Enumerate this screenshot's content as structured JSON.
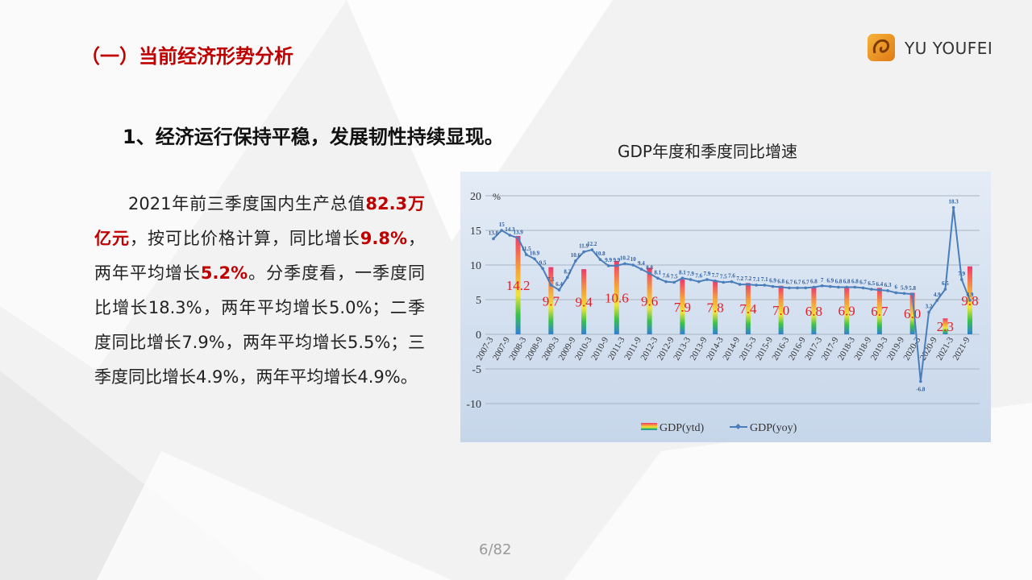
{
  "header": {
    "title": "（一）当前经济形势分析",
    "brand": "YU YOUFEI"
  },
  "heading": "1、经济运行保持平稳，发展韧性持续显现。",
  "body": [
    "2021年前三季度国内生产总值",
    "82.3万亿元",
    "，按可比价格计算，同比增长",
    "9.8%",
    "，两年平均增长",
    "5.2%",
    "。分季度看，一季度同比增长18.3%，两年平均增长5.0%；二季度同比增长7.9%，两年平均增长5.5%；三季度同比增长4.9%，两年平均增长4.9%。"
  ],
  "chart_data": {
    "type": "bar-line",
    "title": "GDP年度和季度同比增速",
    "y_unit": "%",
    "categories": [
      "2007-3",
      null,
      "2007-9",
      null,
      "2008-3",
      null,
      "2008-9",
      null,
      "2009-3",
      null,
      "2009-9",
      null,
      "2010-3",
      null,
      "2010-9",
      null,
      "2011-3",
      null,
      "2011-9",
      null,
      "2012-3",
      null,
      "2012-9",
      null,
      "2013-3",
      null,
      "2013-9",
      null,
      "2014-3",
      null,
      "2014-9",
      null,
      "2015-3",
      null,
      "2015-9",
      null,
      "2016-3",
      null,
      "2016-9",
      null,
      "2017-3",
      null,
      "2017-9",
      null,
      "2018-3",
      null,
      "2018-9",
      null,
      "2019-3",
      null,
      "2019-9",
      null,
      "2020-3",
      null,
      "2020-9",
      null,
      "2021-3",
      null,
      "2021-9"
    ],
    "series": [
      {
        "name": "GDP(ytd)",
        "kind": "bar",
        "values": [
          null,
          null,
          null,
          14.2,
          null,
          null,
          null,
          9.7,
          null,
          null,
          null,
          9.4,
          null,
          null,
          null,
          10.6,
          null,
          null,
          null,
          9.6,
          null,
          null,
          null,
          7.9,
          null,
          null,
          null,
          7.8,
          null,
          null,
          null,
          7.4,
          null,
          null,
          null,
          7.0,
          null,
          null,
          null,
          6.8,
          null,
          null,
          null,
          6.9,
          null,
          null,
          null,
          6.7,
          null,
          null,
          null,
          6.0,
          null,
          null,
          null,
          2.3,
          null,
          null,
          9.8
        ],
        "value_labels": [
          null,
          null,
          null,
          "14.2",
          null,
          null,
          null,
          "9.7",
          null,
          null,
          null,
          "9.4",
          null,
          null,
          null,
          "10.6",
          null,
          null,
          null,
          "9.6",
          null,
          null,
          null,
          "7.9",
          null,
          null,
          null,
          "7.8",
          null,
          null,
          null,
          "7.4",
          null,
          null,
          null,
          "7.0",
          null,
          null,
          null,
          "6.8",
          null,
          null,
          null,
          "6.9",
          null,
          null,
          null,
          "6.7",
          null,
          null,
          null,
          "6.0",
          null,
          null,
          null,
          "2.3",
          null,
          null,
          "9.8"
        ]
      },
      {
        "name": "GDP(yoy)",
        "kind": "line",
        "color": "#4a7ebb",
        "values": [
          13.8,
          15.0,
          14.3,
          13.9,
          11.5,
          10.9,
          9.5,
          7.1,
          6.4,
          8.2,
          10.6,
          11.9,
          12.2,
          10.8,
          9.9,
          9.9,
          10.2,
          10.0,
          9.4,
          8.8,
          8.1,
          7.6,
          7.5,
          8.1,
          7.9,
          7.6,
          7.9,
          7.7,
          7.5,
          7.6,
          7.2,
          7.2,
          7.1,
          7.1,
          6.9,
          6.8,
          6.7,
          6.7,
          6.7,
          6.8,
          7.0,
          6.9,
          6.8,
          6.8,
          6.8,
          6.7,
          6.5,
          6.4,
          6.3,
          6.0,
          5.9,
          5.8,
          -6.8,
          3.2,
          4.9,
          6.5,
          18.3,
          7.9,
          4.9
        ]
      }
    ],
    "ylim": [
      -10,
      20
    ],
    "yticks": [
      -10,
      -5,
      0,
      5,
      10,
      15,
      20
    ],
    "grid": true
  },
  "page_number": "6/82"
}
